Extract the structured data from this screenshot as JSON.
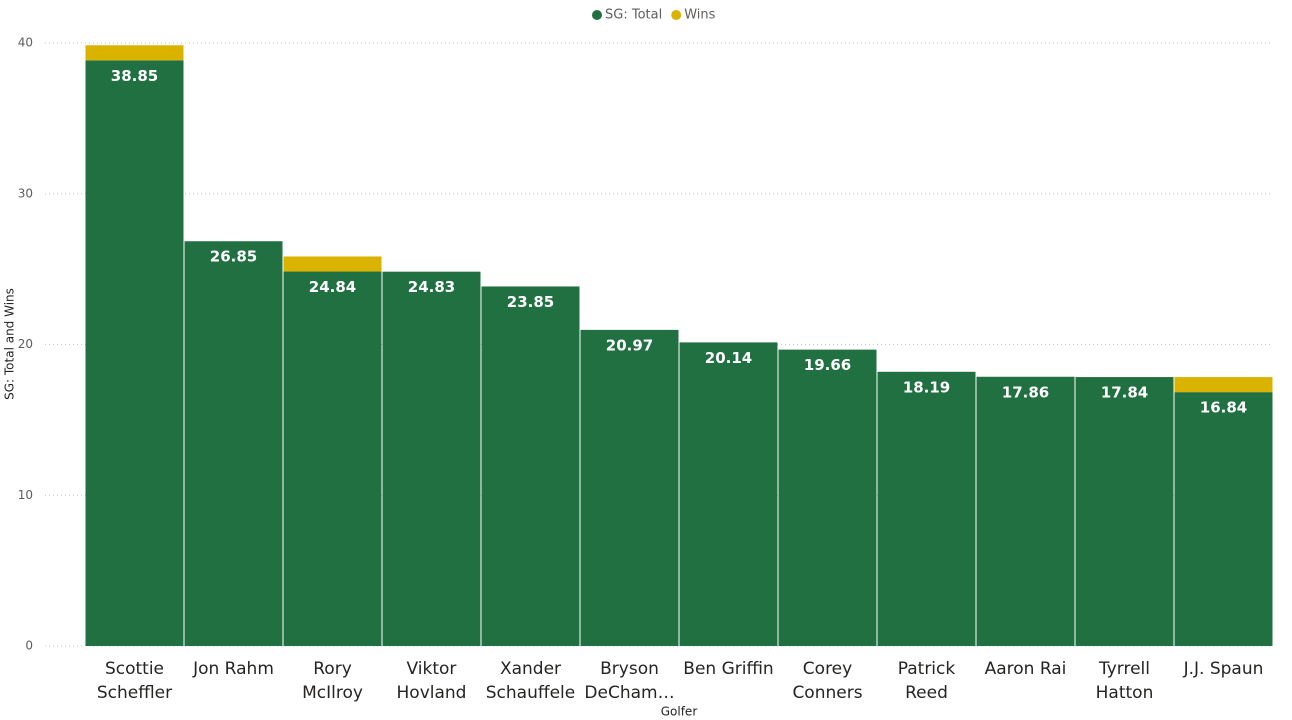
{
  "chart_data": {
    "type": "stacked_bar",
    "x_label": "Golfer",
    "y_label": "SG: Total and Wins",
    "categories": [
      "Scottie Scheffler",
      "Jon Rahm",
      "Rory McIlroy",
      "Viktor Hovland",
      "Xander Schauffele",
      "Bryson DeCham…",
      "Ben Griffin",
      "Corey Conners",
      "Patrick Reed",
      "Aaron Rai",
      "Tyrrell Hatton",
      "J.J. Spaun"
    ],
    "series": [
      {
        "name": "SG: Total",
        "color": "#217041",
        "values": [
          38.85,
          26.85,
          24.84,
          24.83,
          23.85,
          20.97,
          20.14,
          19.66,
          18.19,
          17.86,
          17.84,
          16.84
        ]
      },
      {
        "name": "Wins",
        "color": "#d9b300",
        "values": [
          1,
          0,
          1,
          0,
          0,
          0,
          0,
          0,
          0,
          0,
          0,
          1
        ]
      }
    ],
    "ylim": [
      0,
      40
    ],
    "yticks": [
      0,
      10,
      20,
      30,
      40
    ],
    "grid": true,
    "legend": "top"
  }
}
